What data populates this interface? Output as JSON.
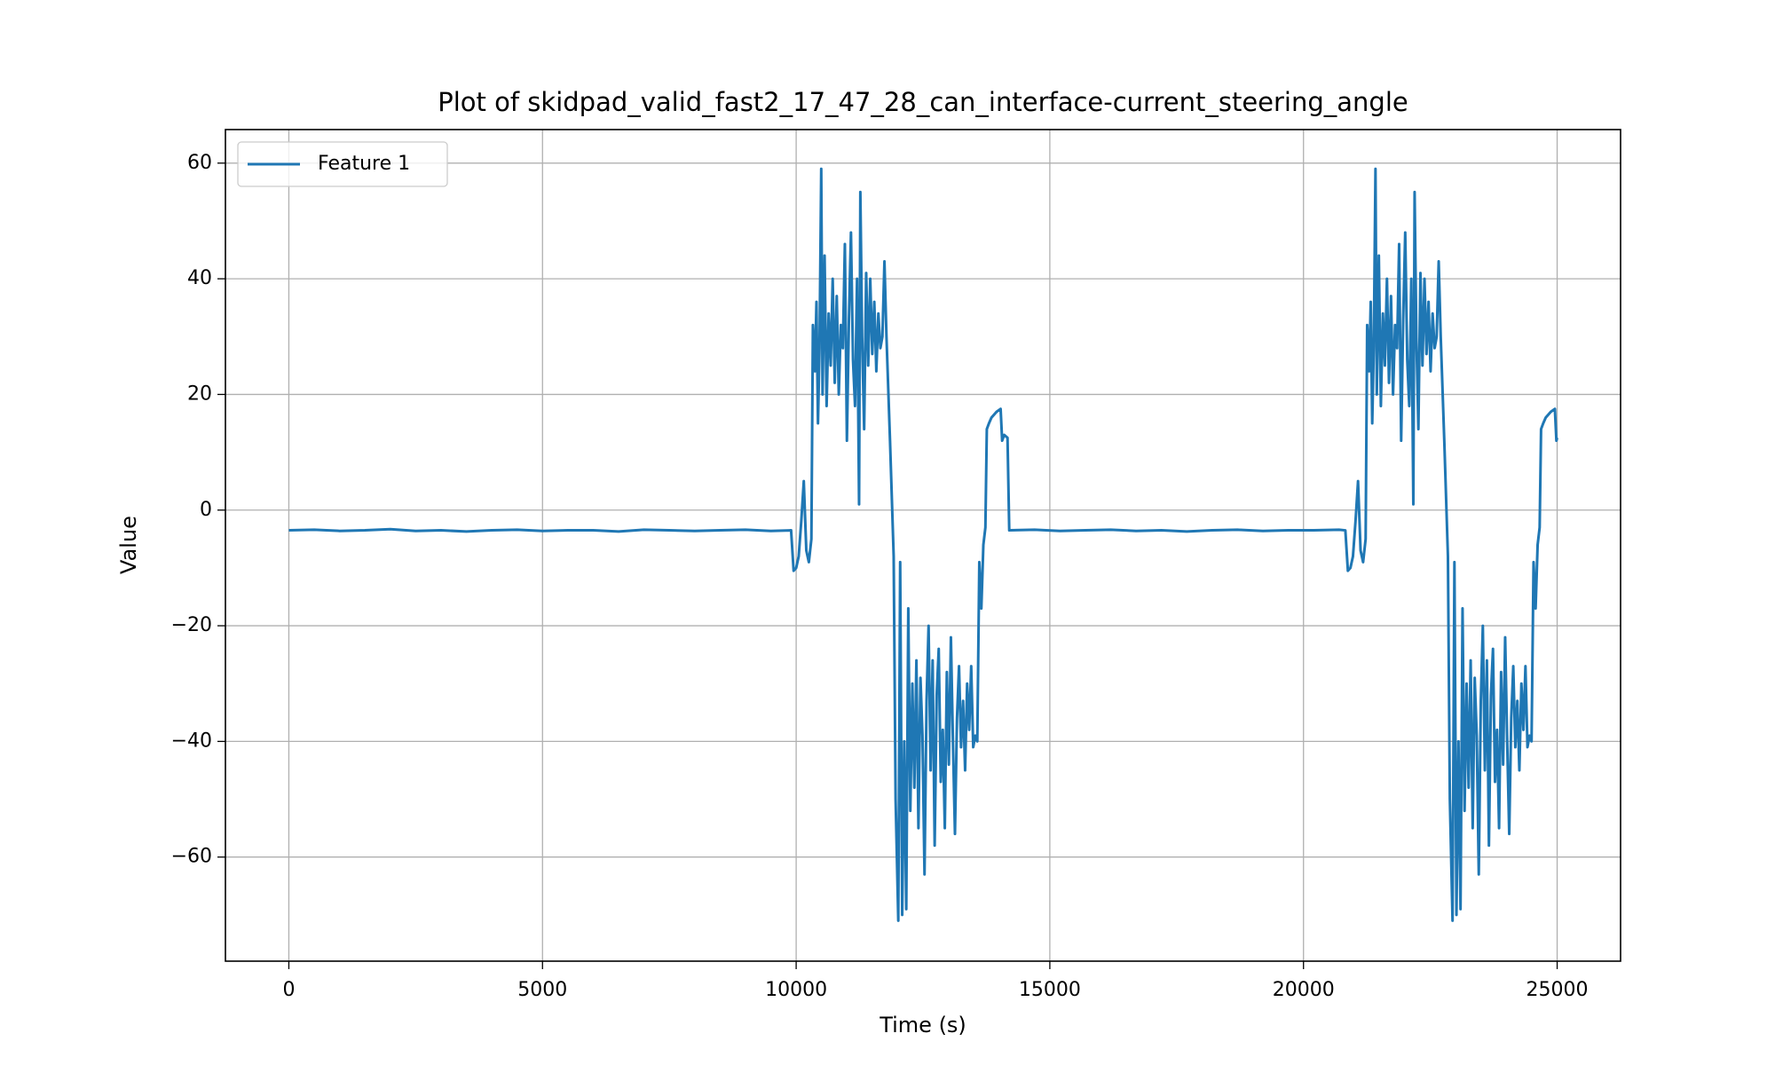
{
  "chart_data": {
    "type": "line",
    "title": "Plot of skidpad_valid_fast2_17_47_28_can_interface-current_steering_angle",
    "x_label": "Time (s)",
    "y_label": "Value",
    "xlim": [
      -1250,
      26250
    ],
    "ylim": [
      -78,
      65.8
    ],
    "xticks": [
      0,
      5000,
      10000,
      15000,
      20000,
      25000
    ],
    "yticks": [
      {
        "value": -60,
        "label": "−60"
      },
      {
        "value": -40,
        "label": "−40"
      },
      {
        "value": -20,
        "label": "−20"
      },
      0,
      20,
      40,
      60
    ],
    "grid": true,
    "legend": "upper left",
    "x": [
      0,
      500,
      1000,
      1500,
      2000,
      2500,
      3000,
      3500,
      4000,
      4500,
      5000,
      5500,
      6000,
      6500,
      7000,
      7500,
      8000,
      8500,
      9000,
      9500,
      9900,
      9950,
      10000,
      10050,
      10100,
      10150,
      10200,
      10250,
      10300,
      10330,
      10370,
      10400,
      10430,
      10460,
      10494,
      10520,
      10560,
      10600,
      10640,
      10680,
      10720,
      10760,
      10800,
      10840,
      10880,
      10920,
      10960,
      11000,
      11040,
      11080,
      11120,
      11160,
      11200,
      11240,
      11265,
      11300,
      11340,
      11380,
      11420,
      11460,
      11500,
      11540,
      11580,
      11620,
      11660,
      11700,
      11740,
      11780,
      11850,
      11922,
      11960,
      12013,
      12050,
      12090,
      12130,
      12170,
      12210,
      12250,
      12290,
      12330,
      12370,
      12410,
      12450,
      12490,
      12530,
      12570,
      12610,
      12650,
      12690,
      12730,
      12770,
      12810,
      12850,
      12890,
      12930,
      12970,
      13010,
      13050,
      13090,
      13130,
      13170,
      13210,
      13250,
      13290,
      13330,
      13370,
      13410,
      13450,
      13490,
      13530,
      13570,
      13610,
      13650,
      13690,
      13730,
      13758,
      13800,
      13850,
      13900,
      13950,
      14030,
      14060,
      14100,
      14166,
      14200,
      14700,
      15200,
      15700,
      16200,
      16700,
      17200,
      17700,
      18200,
      18700,
      19200,
      19700,
      20200,
      20700,
      20825,
      20875,
      20925,
      20975,
      21025,
      21075,
      21125,
      21175,
      21225,
      21255,
      21295,
      21325,
      21355,
      21385,
      21419,
      21445,
      21485,
      21525,
      21565,
      21605,
      21645,
      21685,
      21725,
      21765,
      21805,
      21845,
      21885,
      21925,
      21965,
      22005,
      22045,
      22085,
      22125,
      22165,
      22190,
      22225,
      22265,
      22305,
      22345,
      22385,
      22425,
      22465,
      22505,
      22545,
      22585,
      22625,
      22665,
      22705,
      22775,
      22847,
      22885,
      22938,
      22975,
      23015,
      23055,
      23095,
      23135,
      23175,
      23215,
      23255,
      23295,
      23335,
      23375,
      23415,
      23455,
      23495,
      23535,
      23575,
      23615,
      23655,
      23695,
      23735,
      23775,
      23815,
      23855,
      23895,
      23935,
      23975,
      24015,
      24055,
      24095,
      24135,
      24175,
      24215,
      24255,
      24295,
      24335,
      24375,
      24415,
      24455,
      24495,
      24535,
      24575,
      24615,
      24655,
      24683,
      24725,
      24775,
      24825,
      24875,
      24955,
      24985,
      25000
    ],
    "series": [
      {
        "name": "Feature 1",
        "color": "#1f77b4",
        "values": [
          -3.5,
          -3.4,
          -3.6,
          -3.5,
          -3.3,
          -3.6,
          -3.5,
          -3.7,
          -3.5,
          -3.4,
          -3.6,
          -3.5,
          -3.5,
          -3.7,
          -3.4,
          -3.5,
          -3.6,
          -3.5,
          -3.4,
          -3.6,
          -3.5,
          -10.5,
          -10,
          -8,
          -2,
          5,
          -7,
          -9,
          -5,
          32,
          24,
          36,
          15,
          28,
          59,
          20,
          44,
          18,
          34,
          25,
          40,
          22,
          37,
          20,
          32,
          28,
          46,
          12,
          33,
          48,
          26,
          18,
          40,
          1,
          55,
          30,
          14,
          41,
          25,
          40,
          27,
          36,
          24,
          34,
          28,
          30,
          43,
          30,
          12,
          -8,
          -50,
          -71,
          -9,
          -70,
          -40,
          -69,
          -17,
          -52,
          -30,
          -48,
          -26,
          -55,
          -29,
          -39,
          -63,
          -33,
          -20,
          -45,
          -26,
          -58,
          -32,
          -24,
          -47,
          -38,
          -55,
          -28,
          -44,
          -22,
          -40,
          -56,
          -36,
          -27,
          -41,
          -33,
          -45,
          -30,
          -38,
          -27,
          -41,
          -39,
          -40,
          -9,
          -17,
          -6,
          -3,
          14,
          15,
          16,
          16.5,
          17,
          17.5,
          12,
          13,
          12.5,
          -3.5,
          -3.4,
          -3.6,
          -3.5,
          -3.4,
          -3.6,
          -3.5,
          -3.7,
          -3.5,
          -3.4,
          -3.6,
          -3.5,
          -3.5,
          -3.4,
          -3.5,
          -10.5,
          -10,
          -8,
          -2,
          5,
          -7,
          -9,
          -5,
          32,
          24,
          36,
          15,
          28,
          59,
          20,
          44,
          18,
          34,
          25,
          40,
          22,
          37,
          20,
          32,
          28,
          46,
          12,
          33,
          48,
          26,
          18,
          40,
          1,
          55,
          30,
          14,
          41,
          25,
          40,
          27,
          36,
          24,
          34,
          28,
          30,
          43,
          30,
          12,
          -8,
          -50,
          -71,
          -9,
          -70,
          -40,
          -69,
          -17,
          -52,
          -30,
          -48,
          -26,
          -55,
          -29,
          -39,
          -63,
          -33,
          -20,
          -45,
          -26,
          -58,
          -32,
          -24,
          -47,
          -38,
          -55,
          -28,
          -44,
          -22,
          -40,
          -56,
          -36,
          -27,
          -41,
          -33,
          -45,
          -30,
          -38,
          -27,
          -41,
          -39,
          -40,
          -9,
          -17,
          -6,
          -3,
          14,
          15,
          16,
          16.5,
          17,
          17.5,
          12,
          12.5
        ]
      }
    ]
  }
}
